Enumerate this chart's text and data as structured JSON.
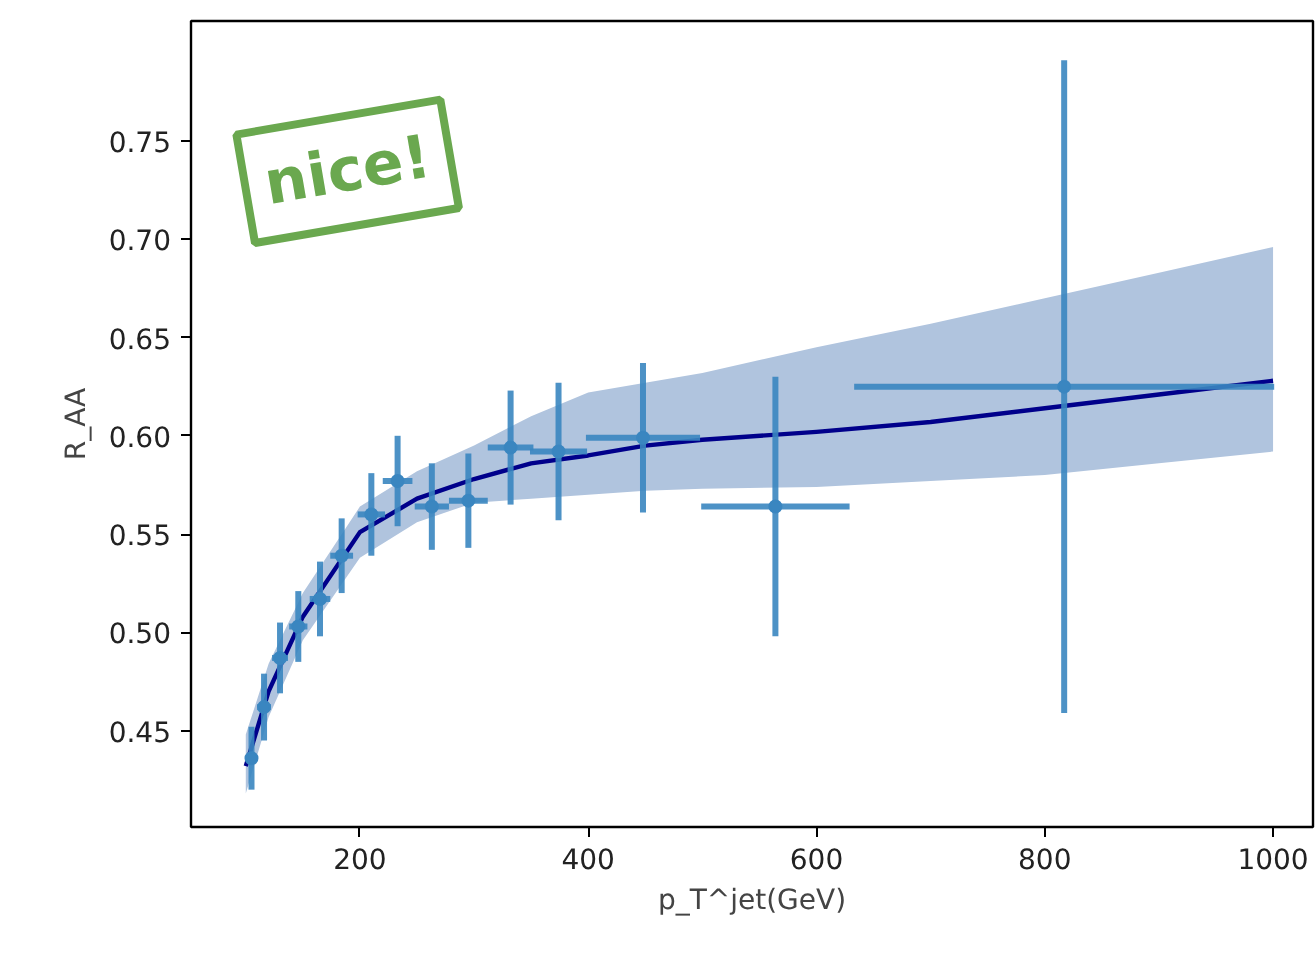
{
  "chart_data": {
    "type": "scatter",
    "xlabel": "p_T^jet(GeV)",
    "ylabel": "R_AA",
    "annotations": [
      "nice!"
    ],
    "xlim": [
      52,
      1035
    ],
    "ylim": [
      0.401,
      0.811
    ],
    "xticks": [
      200,
      400,
      600,
      800,
      1000
    ],
    "yticks": [
      {
        "value": 0.45,
        "label": "0.45"
      },
      {
        "value": 0.5,
        "label": "0.50"
      },
      {
        "value": 0.55,
        "label": "0.55"
      },
      {
        "value": 0.6,
        "label": "0.60"
      },
      {
        "value": 0.65,
        "label": "0.65"
      },
      {
        "value": 0.7,
        "label": "0.70"
      },
      {
        "value": 0.75,
        "label": "0.75"
      }
    ],
    "grid": false,
    "series": [
      {
        "type": "line",
        "color": "#00008b",
        "line_style": "solid",
        "marker": "none",
        "x": [
          100,
          120,
          150,
          200,
          250,
          300,
          350,
          400,
          450,
          500,
          600,
          700,
          800,
          900,
          1000
        ],
        "values": [
          0.432,
          0.47,
          0.508,
          0.551,
          0.568,
          0.578,
          0.586,
          0.59,
          0.595,
          0.598,
          0.602,
          0.607,
          0.614,
          0.621,
          0.628
        ],
        "lower": [
          0.418,
          0.457,
          0.496,
          0.538,
          0.556,
          0.566,
          0.568,
          0.57,
          0.572,
          0.573,
          0.574,
          0.577,
          0.58,
          0.586,
          0.592
        ],
        "upper": [
          0.448,
          0.484,
          0.52,
          0.564,
          0.582,
          0.595,
          0.61,
          0.622,
          0.627,
          0.632,
          0.645,
          0.657,
          0.67,
          0.683,
          0.696
        ]
      },
      {
        "color": "#3a86c0",
        "marker": "circle",
        "x": [
          105,
          116,
          130,
          146,
          165,
          184,
          210,
          233,
          263,
          295,
          332,
          374,
          448,
          564,
          817
        ],
        "values": [
          0.436,
          0.462,
          0.487,
          0.503,
          0.517,
          0.539,
          0.56,
          0.577,
          0.564,
          0.567,
          0.594,
          0.592,
          0.599,
          0.564,
          0.625
        ],
        "errors": [
          0.016,
          0.017,
          0.018,
          0.018,
          0.019,
          0.019,
          0.021,
          0.023,
          0.022,
          0.024,
          0.029,
          0.035,
          0.038,
          0.066,
          0.166
        ],
        "xerrors": [
          5,
          6,
          7,
          8,
          9,
          10,
          12,
          13,
          15,
          17,
          20,
          25,
          50,
          65,
          184
        ]
      }
    ]
  }
}
